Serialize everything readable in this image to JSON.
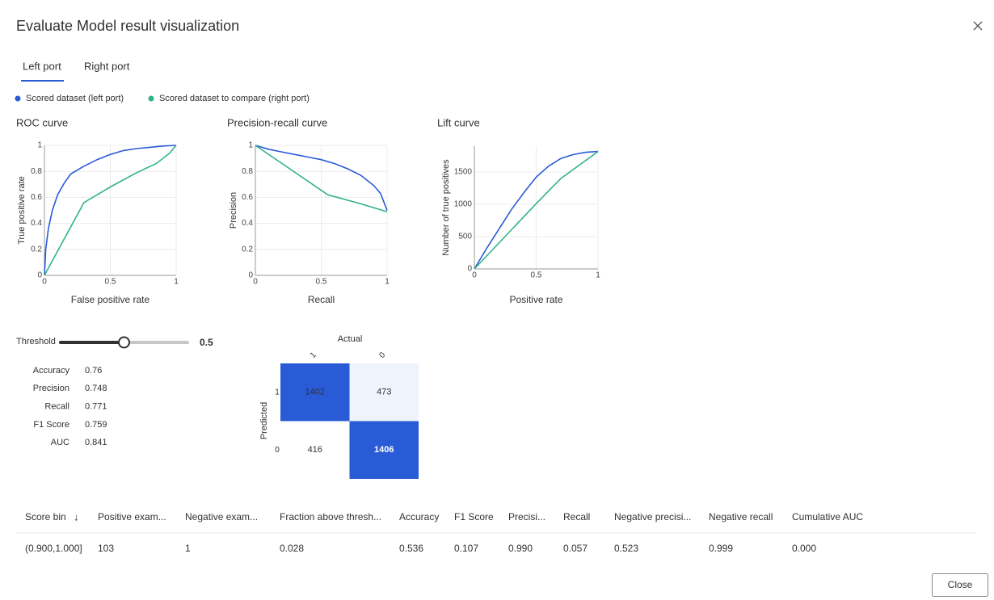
{
  "header": {
    "title": "Evaluate Model result visualization"
  },
  "tabs": [
    "Left port",
    "Right port"
  ],
  "legend": [
    {
      "name": "Scored dataset (left port)",
      "color": "#2a5bd7"
    },
    {
      "name": "Scored dataset to compare (right port)",
      "color": "#2fb28a"
    }
  ],
  "chart_data": [
    {
      "type": "line",
      "title": "ROC curve",
      "x_label": "False positive rate",
      "y_label": "True positive rate",
      "xlim": [
        0,
        1
      ],
      "ylim": [
        0,
        1
      ],
      "xticks": [
        0,
        0.5,
        1
      ],
      "yticks": [
        0,
        0.2,
        0.4,
        0.6,
        0.8,
        1
      ],
      "grid": true,
      "series": [
        {
          "color": "#2a5bd7",
          "x": [
            0,
            0.01,
            0.03,
            0.06,
            0.1,
            0.15,
            0.2,
            0.3,
            0.4,
            0.5,
            0.6,
            0.7,
            0.8,
            0.9,
            1
          ],
          "values": [
            0,
            0.2,
            0.36,
            0.5,
            0.62,
            0.71,
            0.78,
            0.84,
            0.89,
            0.93,
            0.96,
            0.975,
            0.985,
            0.995,
            1
          ]
        },
        {
          "color": "#2fb28a",
          "x": [
            0,
            0.3,
            0.5,
            0.7,
            0.85,
            0.95,
            1
          ],
          "values": [
            0,
            0.56,
            0.68,
            0.79,
            0.86,
            0.94,
            1
          ]
        }
      ]
    },
    {
      "type": "line",
      "title": "Precision-recall curve",
      "x_label": "Recall",
      "y_label": "Precision",
      "xlim": [
        0,
        1
      ],
      "ylim": [
        0,
        1
      ],
      "xticks": [
        0,
        0.5,
        1
      ],
      "yticks": [
        0,
        0.2,
        0.4,
        0.6,
        0.8,
        1
      ],
      "grid": true,
      "series": [
        {
          "color": "#2a5bd7",
          "x": [
            0,
            0.1,
            0.2,
            0.3,
            0.4,
            0.5,
            0.6,
            0.7,
            0.8,
            0.9,
            0.95,
            1
          ],
          "values": [
            1,
            0.97,
            0.95,
            0.93,
            0.91,
            0.89,
            0.86,
            0.82,
            0.77,
            0.69,
            0.63,
            0.5
          ]
        },
        {
          "color": "#2fb28a",
          "x": [
            0,
            0.55,
            0.8,
            1
          ],
          "values": [
            1,
            0.62,
            0.55,
            0.49
          ]
        }
      ]
    },
    {
      "type": "line",
      "title": "Lift curve",
      "x_label": "Positive rate",
      "y_label": "Number of true positives",
      "xlim": [
        0,
        1
      ],
      "ylim": [
        0,
        1900
      ],
      "xticks": [
        0,
        0.5,
        1
      ],
      "yticks": [
        0,
        500,
        1000,
        1500
      ],
      "grid": true,
      "series": [
        {
          "color": "#2a5bd7",
          "x": [
            0,
            0.1,
            0.2,
            0.3,
            0.4,
            0.5,
            0.6,
            0.7,
            0.8,
            0.9,
            1
          ],
          "values": [
            0,
            320,
            620,
            920,
            1180,
            1420,
            1590,
            1710,
            1770,
            1805,
            1818
          ]
        },
        {
          "color": "#2fb28a",
          "x": [
            0,
            0.5,
            0.7,
            1
          ],
          "values": [
            0,
            1010,
            1400,
            1818
          ]
        }
      ]
    }
  ],
  "threshold": {
    "label": "Threshold",
    "value": 0.5
  },
  "metrics": [
    {
      "label": "Accuracy",
      "value": 0.76
    },
    {
      "label": "Precision",
      "value": 0.748
    },
    {
      "label": "Recall",
      "value": 0.771
    },
    {
      "label": "F1 Score",
      "value": 0.759
    },
    {
      "label": "AUC",
      "value": 0.841
    }
  ],
  "confusion_matrix": {
    "x_label": "Actual",
    "y_label": "Predicted",
    "columns": [
      "1",
      "0"
    ],
    "rows": [
      "1",
      "0"
    ],
    "values": [
      [
        1402,
        473
      ],
      [
        416,
        1406
      ]
    ],
    "colors": [
      [
        "#2a5bd7",
        "#eef3fc"
      ],
      [
        "#ffffff",
        "#2a5bd7"
      ]
    ]
  },
  "table": {
    "columns": [
      "Score bin",
      "Positive exam...",
      "Negative exam...",
      "Fraction above thresh...",
      "Accuracy",
      "F1 Score",
      "Precisi...",
      "Recall",
      "Negative precisi...",
      "Negative recall",
      "Cumulative AUC"
    ],
    "rows": [
      [
        "(0.900,1.000]",
        "103",
        "1",
        "0.028",
        "0.536",
        "0.107",
        "0.990",
        "0.057",
        "0.523",
        "0.999",
        "0.000"
      ]
    ]
  },
  "close_button": "Close"
}
